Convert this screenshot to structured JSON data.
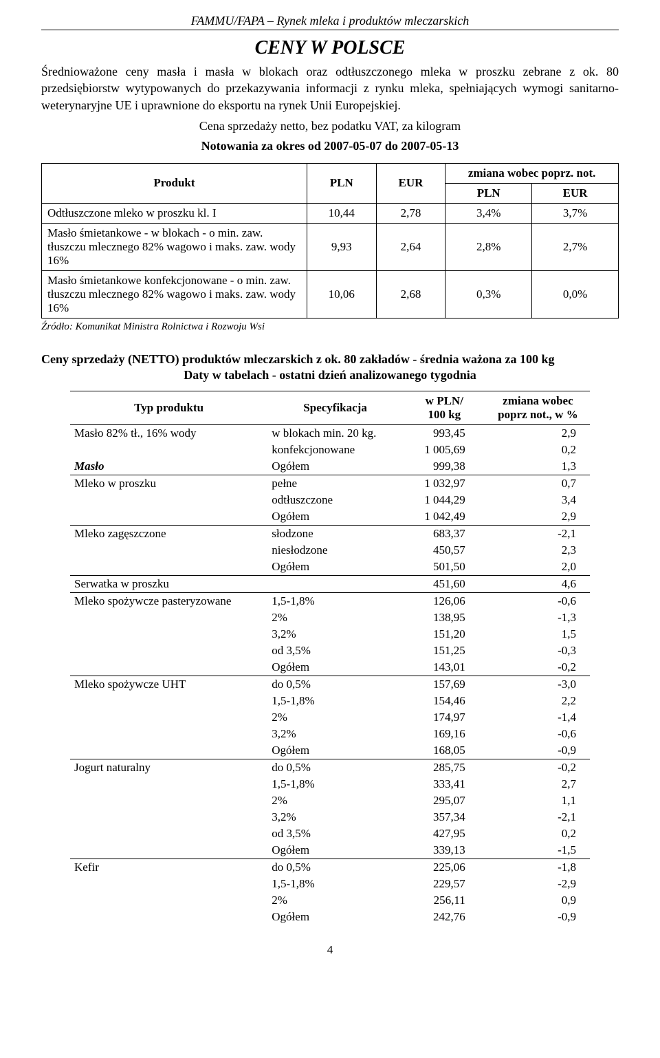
{
  "header": "FAMMU/FAPA – Rynek mleka i produktów mleczarskich",
  "title": "CENY W POLSCE",
  "intro": "Średnioważone ceny masła i masła w blokach oraz odtłuszczonego mleka w proszku zebrane z ok. 80 przedsiębiorstw wytypowanych do przekazywania informacji z rynku mleka, spełniających wymogi sanitarno-weterynaryjne UE i uprawnione do eksportu na rynek Unii Europejskiej.",
  "sub1": "Cena sprzedaży netto, bez podatku VAT, za kilogram",
  "sub2": "Notowania za okres od 2007-05-07 do 2007-05-13",
  "t1": {
    "hdr_product": "Produkt",
    "hdr_pln": "PLN",
    "hdr_eur": "EUR",
    "hdr_change": "zmiana wobec poprz. not.",
    "hdr_pln2": "PLN",
    "hdr_eur2": "EUR",
    "rows": [
      {
        "label": "Odtłuszczone mleko w proszku kl. I",
        "pln": "10,44",
        "eur": "2,78",
        "dpl": "3,4%",
        "deu": "3,7%"
      },
      {
        "label": "Masło śmietankowe - w blokach - o min. zaw. tłuszczu mlecznego 82% wagowo i maks. zaw. wody 16%",
        "pln": "9,93",
        "eur": "2,64",
        "dpl": "2,8%",
        "deu": "2,7%"
      },
      {
        "label": "Masło śmietankowe konfekcjonowane - o min. zaw. tłuszczu mlecznego 82% wagowo i maks. zaw. wody 16%",
        "pln": "10,06",
        "eur": "2,68",
        "dpl": "0,3%",
        "deu": "0,0%"
      }
    ]
  },
  "source": "Źródło: Komunikat Ministra Rolnictwa i Rozwoju Wsi",
  "sec2_title": "Ceny sprzedaży (NETTO) produktów mleczarskich z ok. 80 zakładów - średnia ważona za 100 kg",
  "sec2_sub": "Daty w tabelach - ostatni dzień analizowanego tygodnia",
  "t2": {
    "hdr_typ": "Typ produktu",
    "hdr_spec": "Specyfikacja",
    "hdr_val": "w PLN/\n100 kg",
    "hdr_chg": "zmiana wobec\npoprz not., w %",
    "rows": [
      {
        "typ": "Masło 82% tł., 16% wody",
        "spec": "w blokach min. 20 kg.",
        "val": "993,45",
        "chg": "2,9",
        "top": true
      },
      {
        "typ": "",
        "spec": "konfekcjonowane",
        "val": "1 005,69",
        "chg": "0,2"
      },
      {
        "typ": "Masło",
        "typ_style": "bi",
        "spec": "Ogółem",
        "val": "999,38",
        "chg": "1,3"
      },
      {
        "typ": "Mleko w proszku",
        "spec": "pełne",
        "val": "1 032,97",
        "chg": "0,7",
        "top": true
      },
      {
        "typ": "",
        "spec": "odtłuszczone",
        "val": "1 044,29",
        "chg": "3,4"
      },
      {
        "typ": "",
        "spec": "Ogółem",
        "val": "1 042,49",
        "chg": "2,9"
      },
      {
        "typ": "Mleko zagęszczone",
        "spec": "słodzone",
        "val": "683,37",
        "chg": "-2,1",
        "top": true
      },
      {
        "typ": "",
        "spec": "niesłodzone",
        "val": "450,57",
        "chg": "2,3"
      },
      {
        "typ": "",
        "spec": "Ogółem",
        "val": "501,50",
        "chg": "2,0"
      },
      {
        "typ": "Serwatka w proszku",
        "spec": "",
        "val": "451,60",
        "chg": "4,6",
        "top": true
      },
      {
        "typ": "Mleko spożywcze pasteryzowane",
        "spec": "1,5-1,8%",
        "val": "126,06",
        "chg": "-0,6",
        "top": true
      },
      {
        "typ": "",
        "spec": "2%",
        "val": "138,95",
        "chg": "-1,3"
      },
      {
        "typ": "",
        "spec": "3,2%",
        "val": "151,20",
        "chg": "1,5"
      },
      {
        "typ": "",
        "spec": "od 3,5%",
        "val": "151,25",
        "chg": "-0,3"
      },
      {
        "typ": "",
        "spec": "Ogółem",
        "val": "143,01",
        "chg": "-0,2"
      },
      {
        "typ": "Mleko spożywcze UHT",
        "spec": "do 0,5%",
        "val": "157,69",
        "chg": "-3,0",
        "top": true
      },
      {
        "typ": "",
        "spec": "1,5-1,8%",
        "val": "154,46",
        "chg": "2,2"
      },
      {
        "typ": "",
        "spec": "2%",
        "val": "174,97",
        "chg": "-1,4"
      },
      {
        "typ": "",
        "spec": "3,2%",
        "val": "169,16",
        "chg": "-0,6"
      },
      {
        "typ": "",
        "spec": "Ogółem",
        "val": "168,05",
        "chg": "-0,9"
      },
      {
        "typ": "Jogurt naturalny",
        "spec": "do 0,5%",
        "val": "285,75",
        "chg": "-0,2",
        "top": true
      },
      {
        "typ": "",
        "spec": "1,5-1,8%",
        "val": "333,41",
        "chg": "2,7"
      },
      {
        "typ": "",
        "spec": "2%",
        "val": "295,07",
        "chg": "1,1"
      },
      {
        "typ": "",
        "spec": "3,2%",
        "val": "357,34",
        "chg": "-2,1"
      },
      {
        "typ": "",
        "spec": "od 3,5%",
        "val": "427,95",
        "chg": "0,2"
      },
      {
        "typ": "",
        "spec": "Ogółem",
        "val": "339,13",
        "chg": "-1,5"
      },
      {
        "typ": "Kefir",
        "spec": "do 0,5%",
        "val": "225,06",
        "chg": "-1,8",
        "top": true
      },
      {
        "typ": "",
        "spec": "1,5-1,8%",
        "val": "229,57",
        "chg": "-2,9"
      },
      {
        "typ": "",
        "spec": "2%",
        "val": "256,11",
        "chg": "0,9"
      },
      {
        "typ": "",
        "spec": "Ogółem",
        "val": "242,76",
        "chg": "-0,9"
      }
    ]
  },
  "page": "4"
}
